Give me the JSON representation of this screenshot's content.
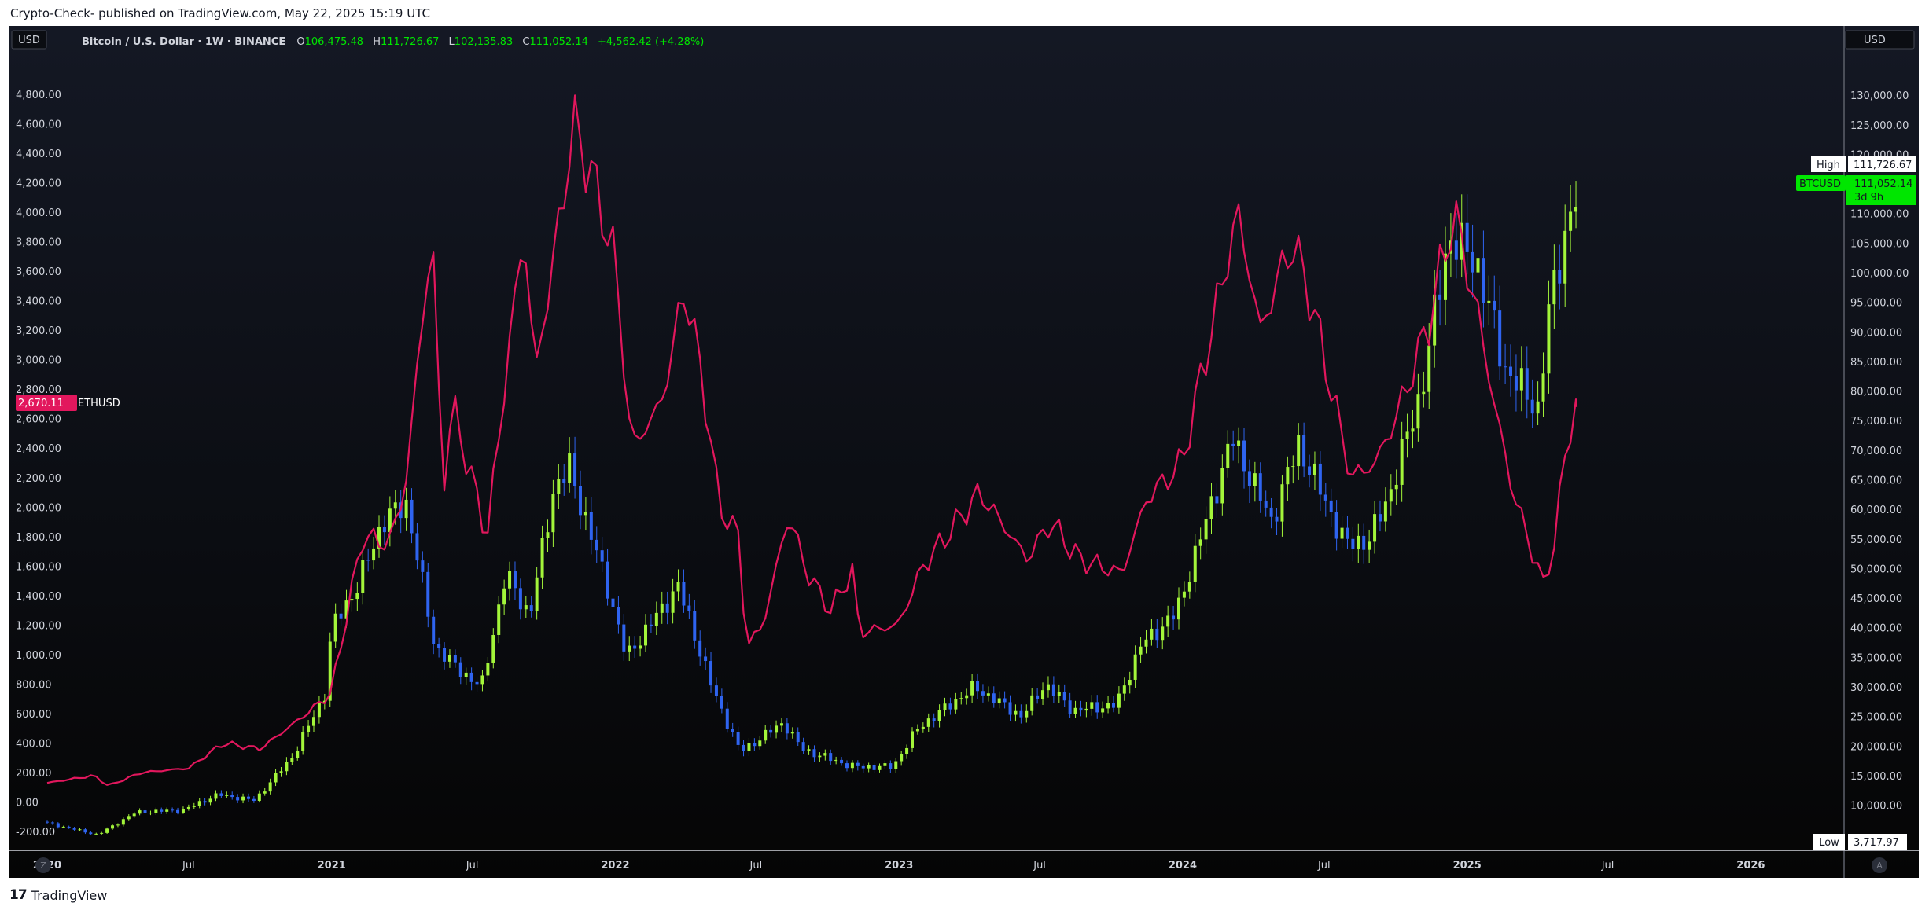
{
  "header": {
    "publisher": "Crypto-Check- published on TradingView.com, May 22, 2025 15:19 UTC"
  },
  "legend": {
    "currency_left": "USD",
    "currency_right": "USD",
    "symbol": "Bitcoin / U.S. Dollar · 1W · BINANCE",
    "o_label": "O",
    "o_value": "106,475.48",
    "h_label": "H",
    "h_value": "111,726.67",
    "l_label": "L",
    "l_value": "102,135.83",
    "c_label": "C",
    "c_value": "111,052.14",
    "change": "+4,562.42 (+4.28%)"
  },
  "badges": {
    "high_label": "High",
    "high_value": "111,726.67",
    "btc_symbol": "BTCUSD",
    "btc_value": "111,052.14",
    "btc_countdown": "3d 9h",
    "low_label": "Low",
    "low_value": "3,717.97",
    "eth_value": "2,670.11",
    "eth_symbol": "ETHUSD"
  },
  "buttons": {
    "left_corner": "Z",
    "right_corner": "A"
  },
  "footer": {
    "logo_glyph": "17",
    "brand": "TradingView"
  },
  "colors": {
    "up": "#a3f53a",
    "down": "#2f64f0",
    "eth": "#e2175d",
    "btc_badge": "#00e600",
    "axis_text": "#d1d4dc"
  },
  "chart_data": {
    "type": "line",
    "subtype": "candlestick overlay",
    "timeframe": "1W",
    "x_ticks": [
      "2020",
      "Jul",
      "2021",
      "Jul",
      "2022",
      "Jul",
      "2023",
      "Jul",
      "2024",
      "Jul",
      "2025",
      "Jul",
      "2026"
    ],
    "x_range": [
      "2020-01-01",
      "2026-05-01"
    ],
    "left_axis": {
      "series": "ETHUSD",
      "ticks": [
        "-200.00",
        "0.00",
        "200.00",
        "400.00",
        "600.00",
        "800.00",
        "1,000.00",
        "1,200.00",
        "1,400.00",
        "1,600.00",
        "1,800.00",
        "2,000.00",
        "2,200.00",
        "2,400.00",
        "2,600.00",
        "2,800.00",
        "3,000.00",
        "3,200.00",
        "3,400.00",
        "3,600.00",
        "3,800.00",
        "4,000.00",
        "4,200.00",
        "4,400.00",
        "4,600.00",
        "4,800.00"
      ],
      "range": [
        -290,
        5050
      ]
    },
    "right_axis": {
      "series": "BTCUSD",
      "ticks": [
        "10,000.00",
        "15,000.00",
        "20,000.00",
        "25,000.00",
        "30,000.00",
        "35,000.00",
        "40,000.00",
        "45,000.00",
        "50,000.00",
        "55,000.00",
        "60,000.00",
        "65,000.00",
        "70,000.00",
        "75,000.00",
        "80,000.00",
        "85,000.00",
        "90,000.00",
        "95,000.00",
        "100,000.00",
        "105,000.00",
        "110,000.00",
        "115,000.00",
        "120,000.00",
        "125,000.00",
        "130,000.00"
      ],
      "range": [
        3300,
        136400
      ]
    },
    "series": [
      {
        "name": "ETHUSD",
        "kind": "line",
        "points": [
          [
            "2020-01-01",
            130
          ],
          [
            "2020-03-01",
            180
          ],
          [
            "2020-03-20",
            110
          ],
          [
            "2020-05-01",
            200
          ],
          [
            "2020-07-01",
            230
          ],
          [
            "2020-08-15",
            400
          ],
          [
            "2020-10-01",
            360
          ],
          [
            "2020-11-20",
            560
          ],
          [
            "2020-12-31",
            735
          ],
          [
            "2021-02-10",
            1800
          ],
          [
            "2021-03-15",
            1750
          ],
          [
            "2021-04-05",
            2100
          ],
          [
            "2021-05-10",
            3900
          ],
          [
            "2021-05-24",
            2100
          ],
          [
            "2021-06-05",
            2700
          ],
          [
            "2021-07-20",
            1800
          ],
          [
            "2021-08-20",
            3200
          ],
          [
            "2021-09-05",
            3900
          ],
          [
            "2021-09-20",
            2900
          ],
          [
            "2021-10-20",
            3900
          ],
          [
            "2021-11-08",
            4600
          ],
          [
            "2021-11-29",
            4300
          ],
          [
            "2021-12-31",
            3700
          ],
          [
            "2022-01-22",
            2400
          ],
          [
            "2022-03-01",
            2700
          ],
          [
            "2022-04-01",
            3500
          ],
          [
            "2022-04-25",
            2800
          ],
          [
            "2022-05-15",
            2000
          ],
          [
            "2022-06-10",
            1800
          ],
          [
            "2022-06-18",
            1050
          ],
          [
            "2022-07-10",
            1200
          ],
          [
            "2022-08-12",
            1950
          ],
          [
            "2022-09-05",
            1550
          ],
          [
            "2022-10-05",
            1300
          ],
          [
            "2022-11-05",
            1600
          ],
          [
            "2022-11-10",
            1150
          ],
          [
            "2022-12-31",
            1200
          ],
          [
            "2023-02-01",
            1600
          ],
          [
            "2023-04-15",
            2100
          ],
          [
            "2023-06-15",
            1650
          ],
          [
            "2023-07-15",
            1900
          ],
          [
            "2023-08-20",
            1650
          ],
          [
            "2023-10-15",
            1550
          ],
          [
            "2023-11-15",
            2050
          ],
          [
            "2023-12-31",
            2300
          ],
          [
            "2024-03-12",
            4000
          ],
          [
            "2024-04-10",
            3200
          ],
          [
            "2024-05-20",
            3800
          ],
          [
            "2024-06-10",
            3500
          ],
          [
            "2024-08-05",
            2200
          ],
          [
            "2024-09-05",
            2300
          ],
          [
            "2024-10-01",
            2600
          ],
          [
            "2024-11-10",
            3200
          ],
          [
            "2024-12-15",
            4000
          ],
          [
            "2025-01-15",
            3300
          ],
          [
            "2025-02-05",
            2700
          ],
          [
            "2025-03-01",
            2100
          ],
          [
            "2025-04-09",
            1470
          ],
          [
            "2025-04-25",
            1800
          ],
          [
            "2025-05-10",
            2500
          ],
          [
            "2025-05-22",
            2680
          ]
        ]
      },
      {
        "name": "BTCUSD",
        "kind": "candles",
        "points": [
          [
            "2020-01-01",
            7200
          ],
          [
            "2020-03-13",
            5000
          ],
          [
            "2020-05-01",
            8800
          ],
          [
            "2020-07-01",
            9200
          ],
          [
            "2020-08-15",
            11800
          ],
          [
            "2020-10-01",
            10800
          ],
          [
            "2020-11-20",
            18500
          ],
          [
            "2020-12-31",
            29000
          ],
          [
            "2021-01-08",
            40000
          ],
          [
            "2021-02-10",
            47000
          ],
          [
            "2021-03-15",
            58000
          ],
          [
            "2021-04-15",
            61000
          ],
          [
            "2021-05-20",
            37000
          ],
          [
            "2021-06-20",
            33000
          ],
          [
            "2021-07-20",
            30000
          ],
          [
            "2021-08-20",
            49000
          ],
          [
            "2021-09-20",
            42000
          ],
          [
            "2021-10-20",
            63000
          ],
          [
            "2021-11-10",
            67000
          ],
          [
            "2021-12-31",
            46000
          ],
          [
            "2022-01-22",
            35000
          ],
          [
            "2022-03-30",
            47000
          ],
          [
            "2022-05-15",
            29000
          ],
          [
            "2022-06-18",
            19000
          ],
          [
            "2022-08-12",
            24000
          ],
          [
            "2022-09-05",
            19500
          ],
          [
            "2022-11-10",
            16500
          ],
          [
            "2022-12-31",
            16500
          ],
          [
            "2023-02-01",
            23000
          ],
          [
            "2023-04-15",
            30000
          ],
          [
            "2023-06-15",
            25000
          ],
          [
            "2023-07-15",
            30500
          ],
          [
            "2023-08-20",
            26000
          ],
          [
            "2023-10-15",
            27000
          ],
          [
            "2023-11-15",
            37000
          ],
          [
            "2023-12-31",
            42500
          ],
          [
            "2024-03-12",
            72000
          ],
          [
            "2024-05-01",
            58000
          ],
          [
            "2024-06-05",
            71000
          ],
          [
            "2024-08-05",
            54000
          ],
          [
            "2024-09-05",
            55000
          ],
          [
            "2024-10-01",
            63000
          ],
          [
            "2024-11-10",
            80000
          ],
          [
            "2024-12-15",
            106000
          ],
          [
            "2025-01-20",
            102000
          ],
          [
            "2025-02-25",
            84000
          ],
          [
            "2025-04-09",
            77000
          ],
          [
            "2025-04-25",
            95000
          ],
          [
            "2025-05-22",
            111052
          ]
        ]
      }
    ]
  }
}
